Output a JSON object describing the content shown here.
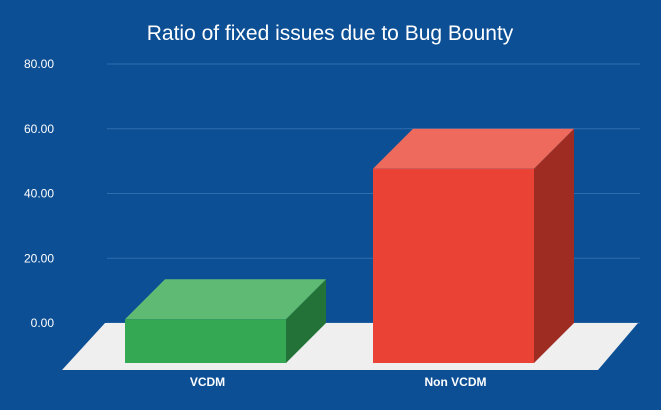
{
  "chart_data": {
    "type": "bar",
    "title": "Ratio of fixed issues due to Bug Bounty",
    "xlabel": "",
    "ylabel": "",
    "categories": [
      "VCDM",
      "Non VCDM"
    ],
    "values": [
      13.5,
      60
    ],
    "ylim": [
      0,
      80
    ],
    "yticks": [
      0,
      20,
      40,
      60,
      80
    ],
    "ytick_labels": [
      "0.00",
      "20.00",
      "40.00",
      "60.00",
      "80.00"
    ],
    "grid": true,
    "legend": "none",
    "colors": {
      "background": "#0d4f94",
      "gridline": "#2f6fae",
      "floor": "#efefef",
      "bars": [
        {
          "front": "#34a853",
          "top": "#5fba74",
          "side": "#237339"
        },
        {
          "front": "#ea4335",
          "top": "#ee6a5d",
          "side": "#9f2c23"
        }
      ]
    }
  }
}
